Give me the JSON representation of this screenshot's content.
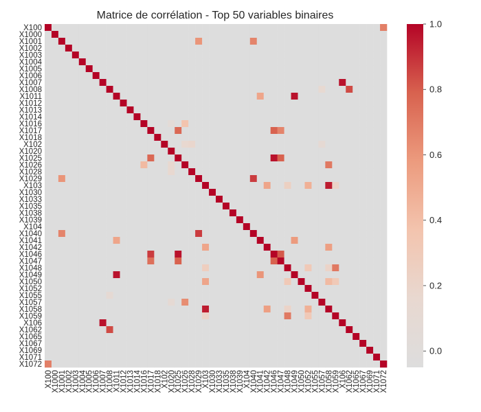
{
  "chart_data": {
    "type": "heatmap",
    "title": "Matrice de corrélation - Top 50 variables binaires",
    "labels": [
      "X100",
      "X1000",
      "X1001",
      "X1002",
      "X1003",
      "X1004",
      "X1005",
      "X1006",
      "X1007",
      "X1008",
      "X1011",
      "X1012",
      "X1013",
      "X1014",
      "X1016",
      "X1017",
      "X1018",
      "X102",
      "X1020",
      "X1025",
      "X1026",
      "X1028",
      "X1029",
      "X103",
      "X1030",
      "X1033",
      "X1035",
      "X1038",
      "X1039",
      "X104",
      "X1040",
      "X1041",
      "X1042",
      "X1046",
      "X1047",
      "X1048",
      "X1049",
      "X1050",
      "X1052",
      "X1055",
      "X1057",
      "X1058",
      "X1059",
      "X106",
      "X1062",
      "X1065",
      "X1067",
      "X1069",
      "X1071",
      "X1072"
    ],
    "background_value": 0.0,
    "diagonal_value": 1.0,
    "notable_cells": [
      {
        "row": "X100",
        "col": "X1072",
        "value": 0.7
      },
      {
        "row": "X1001",
        "col": "X1029",
        "value": 0.62
      },
      {
        "row": "X1001",
        "col": "X1040",
        "value": 0.68
      },
      {
        "row": "X1007",
        "col": "X106",
        "value": 0.97
      },
      {
        "row": "X1008",
        "col": "X1062",
        "value": 0.85
      },
      {
        "row": "X1008",
        "col": "X1057",
        "value": 0.18
      },
      {
        "row": "X1011",
        "col": "X1041",
        "value": 0.55
      },
      {
        "row": "X1011",
        "col": "X1049",
        "value": 0.97
      },
      {
        "row": "X1016",
        "col": "X1020",
        "value": 0.1
      },
      {
        "row": "X1016",
        "col": "X1026",
        "value": 0.4
      },
      {
        "row": "X1017",
        "col": "X1025",
        "value": 0.78
      },
      {
        "row": "X1017",
        "col": "X1046",
        "value": 0.8
      },
      {
        "row": "X1017",
        "col": "X1047",
        "value": 0.68
      },
      {
        "row": "X102",
        "col": "X1026",
        "value": 0.2
      },
      {
        "row": "X102",
        "col": "X1028",
        "value": 0.22
      },
      {
        "row": "X102",
        "col": "X1057",
        "value": 0.15
      },
      {
        "row": "X1025",
        "col": "X1017",
        "value": 0.78
      },
      {
        "row": "X1025",
        "col": "X1046",
        "value": 0.97
      },
      {
        "row": "X1025",
        "col": "X1047",
        "value": 0.8
      },
      {
        "row": "X1026",
        "col": "X1016",
        "value": 0.45
      },
      {
        "row": "X1026",
        "col": "X1020",
        "value": 0.2
      },
      {
        "row": "X1026",
        "col": "X1058",
        "value": 0.72
      },
      {
        "row": "X1028",
        "col": "X1020",
        "value": 0.2
      },
      {
        "row": "X1029",
        "col": "X1001",
        "value": 0.62
      },
      {
        "row": "X1029",
        "col": "X1040",
        "value": 0.88
      },
      {
        "row": "X103",
        "col": "X1042",
        "value": 0.55
      },
      {
        "row": "X103",
        "col": "X1048",
        "value": 0.28
      },
      {
        "row": "X103",
        "col": "X1052",
        "value": 0.5
      },
      {
        "row": "X103",
        "col": "X1058",
        "value": 0.95
      },
      {
        "row": "X103",
        "col": "X1059",
        "value": 0.25
      },
      {
        "row": "X1040",
        "col": "X1001",
        "value": 0.68
      },
      {
        "row": "X1040",
        "col": "X1029",
        "value": 0.88
      },
      {
        "row": "X1041",
        "col": "X1011",
        "value": 0.55
      },
      {
        "row": "X1041",
        "col": "X1049",
        "value": 0.6
      },
      {
        "row": "X1042",
        "col": "X103",
        "value": 0.55
      },
      {
        "row": "X1042",
        "col": "X1058",
        "value": 0.58
      },
      {
        "row": "X1046",
        "col": "X1017",
        "value": 0.88
      },
      {
        "row": "X1046",
        "col": "X1025",
        "value": 0.97
      },
      {
        "row": "X1046",
        "col": "X1047",
        "value": 0.82
      },
      {
        "row": "X1047",
        "col": "X1017",
        "value": 0.75
      },
      {
        "row": "X1047",
        "col": "X1025",
        "value": 0.8
      },
      {
        "row": "X1047",
        "col": "X1046",
        "value": 0.8
      },
      {
        "row": "X1048",
        "col": "X103",
        "value": 0.3
      },
      {
        "row": "X1048",
        "col": "X1052",
        "value": 0.35
      },
      {
        "row": "X1048",
        "col": "X1058",
        "value": 0.25
      },
      {
        "row": "X1048",
        "col": "X1059",
        "value": 0.72
      },
      {
        "row": "X1049",
        "col": "X1011",
        "value": 0.97
      },
      {
        "row": "X1049",
        "col": "X1041",
        "value": 0.62
      },
      {
        "row": "X1050",
        "col": "X103",
        "value": 0.55
      },
      {
        "row": "X1050",
        "col": "X1048",
        "value": 0.35
      },
      {
        "row": "X1050",
        "col": "X1058",
        "value": 0.45
      },
      {
        "row": "X1050",
        "col": "X1059",
        "value": 0.35
      },
      {
        "row": "X1055",
        "col": "X1008",
        "value": 0.15
      },
      {
        "row": "X1057",
        "col": "X1020",
        "value": 0.15
      },
      {
        "row": "X1057",
        "col": "X1026",
        "value": 0.65
      },
      {
        "row": "X1058",
        "col": "X103",
        "value": 0.95
      },
      {
        "row": "X1058",
        "col": "X1042",
        "value": 0.58
      },
      {
        "row": "X1058",
        "col": "X1048",
        "value": 0.25
      },
      {
        "row": "X1058",
        "col": "X1052",
        "value": 0.5
      },
      {
        "row": "X1059",
        "col": "X103",
        "value": 0.25
      },
      {
        "row": "X1059",
        "col": "X1048",
        "value": 0.72
      },
      {
        "row": "X1059",
        "col": "X1052",
        "value": 0.35
      },
      {
        "row": "X106",
        "col": "X1007",
        "value": 0.97
      },
      {
        "row": "X1062",
        "col": "X1008",
        "value": 0.85
      },
      {
        "row": "X1072",
        "col": "X100",
        "value": 0.7
      }
    ],
    "colorbar": {
      "min": -0.05,
      "max": 1.0,
      "ticks": [
        "0.0",
        "0.2",
        "0.4",
        "0.6",
        "0.8",
        "1.0"
      ],
      "tick_values": [
        0.0,
        0.2,
        0.4,
        0.6,
        0.8,
        1.0
      ],
      "colormap": "coolwarm"
    },
    "grid": false,
    "legend_placement": "right"
  }
}
